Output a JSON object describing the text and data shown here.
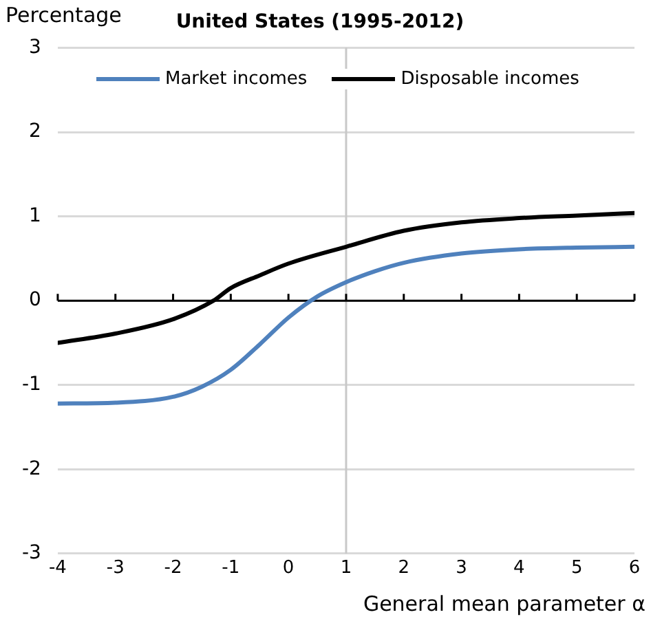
{
  "chart_data": {
    "type": "line",
    "title": "United States (1995-2012)",
    "ylabel": "Percentage",
    "xlabel": "General mean parameter α",
    "series": [
      {
        "name": "Market incomes",
        "color": "#4f81bd",
        "x": [
          -4,
          -3,
          -2,
          -1.5,
          -1,
          -0.5,
          0,
          0.5,
          1,
          1.5,
          2,
          3,
          4,
          5,
          6
        ],
        "values": [
          -1.22,
          -1.21,
          -1.14,
          -1.02,
          -0.82,
          -0.52,
          -0.2,
          0.05,
          0.22,
          0.35,
          0.45,
          0.56,
          0.61,
          0.63,
          0.64
        ]
      },
      {
        "name": "Disposable incomes",
        "color": "#000000",
        "x": [
          -4,
          -3,
          -2,
          -1.3,
          -1,
          -0.5,
          0,
          1,
          2,
          3,
          4,
          5,
          6
        ],
        "values": [
          -0.5,
          -0.39,
          -0.22,
          0,
          0.15,
          0.3,
          0.44,
          0.64,
          0.83,
          0.93,
          0.98,
          1.01,
          1.04
        ]
      }
    ],
    "xlim": [
      -4,
      6
    ],
    "xticks": [
      -4,
      -3,
      -2,
      -1,
      0,
      1,
      2,
      3,
      4,
      5,
      6
    ],
    "ylim": [
      -3,
      3
    ],
    "yticks": [
      -3,
      -2,
      -1,
      0,
      1,
      2,
      3
    ],
    "ref_lines": [
      {
        "axis": "x",
        "value": 1,
        "color": "#c8c8c8"
      }
    ],
    "grid": "y",
    "legend": "top",
    "marker": "none",
    "line_style": "solid"
  }
}
